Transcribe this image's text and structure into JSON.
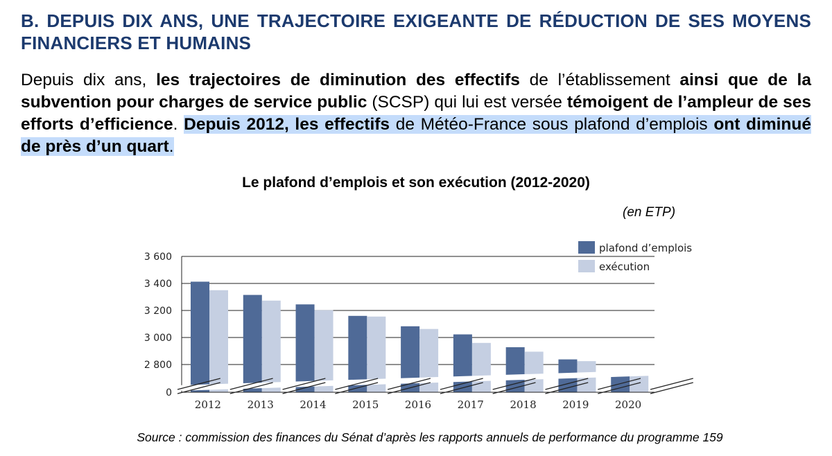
{
  "heading": "B. DEPUIS DIX ANS, UNE TRAJECTOIRE EXIGEANTE DE RÉDUCTION DE SES MOYENS FINANCIERS ET HUMAINS",
  "paragraph": {
    "t1": "Depuis dix ans, ",
    "b1": "les trajectoires de diminution des effectifs",
    "t2": " de l’établissement ",
    "b2": "ainsi que de la subvention pour charges de service public",
    "t3": " (SCSP) qui lui est versée ",
    "b3": "témoigent de l’ampleur de ses efforts d’efficience",
    "t4": ". ",
    "b4": "Depuis 2012, les effectifs",
    "t5": " de Météo-France sous plafond d’emplois ",
    "b5": "ont diminué de près d’un quart",
    "t6": "."
  },
  "chart_title": "Le plafond d’emplois et son exécution (2012-2020)",
  "unit_label": "(en ETP)",
  "source": "Source : commission des finances du Sénat d’après les rapports annuels de performance du programme 159",
  "colors": {
    "heading": "#1c3a6e",
    "highlight": "#c4dcfb",
    "plafond": "#4f6a97",
    "execution": "#c5cfe2"
  },
  "chart_data": {
    "type": "bar",
    "categories": [
      "2012",
      "2013",
      "2014",
      "2015",
      "2016",
      "2017",
      "2018",
      "2019",
      "2020"
    ],
    "series": [
      {
        "name": "plafond d’emplois",
        "values": [
          3413,
          3315,
          3245,
          3160,
          3083,
          3023,
          2928,
          2838,
          2740
        ]
      },
      {
        "name": "exécution",
        "values": [
          3350,
          3273,
          3202,
          3155,
          3063,
          2960,
          2895,
          2825,
          2740
        ]
      }
    ],
    "ylim": [
      0,
      3600
    ],
    "yticks": [
      {
        "value": 0,
        "label": "0"
      },
      {
        "value": 2800,
        "label": "2 800"
      },
      {
        "value": 3000,
        "label": "3 000"
      },
      {
        "value": 3200,
        "label": "3 200"
      },
      {
        "value": 3400,
        "label": "3 400"
      },
      {
        "value": 3600,
        "label": "3 600"
      }
    ],
    "axis_break": true,
    "grid": true,
    "legend": "top-right"
  }
}
